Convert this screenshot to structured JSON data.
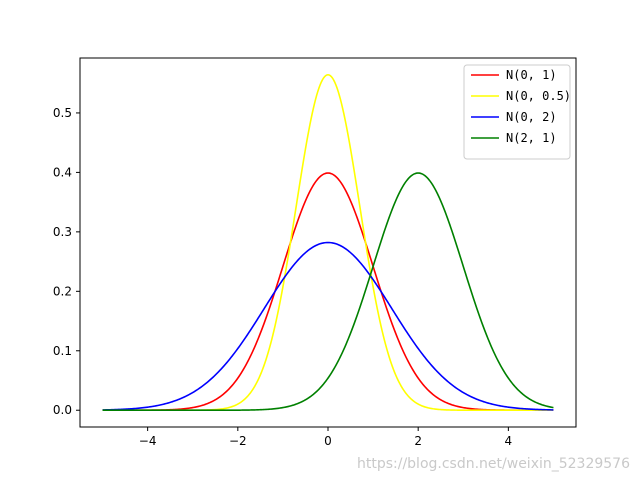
{
  "chart_data": {
    "type": "line",
    "title": "",
    "xlabel": "",
    "ylabel": "",
    "xlim": [
      -5.5,
      5.5
    ],
    "ylim": [
      -0.0282,
      0.5924
    ],
    "xticks": [
      -4,
      -2,
      0,
      2,
      4
    ],
    "xtick_labels": [
      "−4",
      "−2",
      "0",
      "2",
      "4"
    ],
    "yticks": [
      0.0,
      0.1,
      0.2,
      0.3,
      0.4,
      0.5
    ],
    "ytick_labels": [
      "0.0",
      "0.1",
      "0.2",
      "0.3",
      "0.4",
      "0.5"
    ],
    "grid": false,
    "legend_position": "top-right",
    "x_domain": [
      -5,
      5
    ],
    "series": [
      {
        "name": "N(0, 1)",
        "kind": "normal_pdf",
        "mean": 0,
        "variance": 1,
        "color": "#ff0000"
      },
      {
        "name": "N(0, 0.5)",
        "kind": "normal_pdf",
        "mean": 0,
        "variance": 0.5,
        "color": "#ffff00"
      },
      {
        "name": "N(0, 2)",
        "kind": "normal_pdf",
        "mean": 0,
        "variance": 2,
        "color": "#0000ff"
      },
      {
        "name": "N(2, 1)",
        "kind": "normal_pdf",
        "mean": 2,
        "variance": 1,
        "color": "#008000"
      }
    ]
  },
  "watermark": "https://blog.csdn.net/weixin_52329576"
}
